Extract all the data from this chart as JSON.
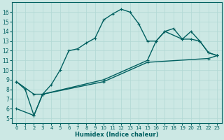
{
  "title": "",
  "xlabel": "Humidex (Indice chaleur)",
  "bg_color": "#cce8e4",
  "line_color": "#006060",
  "grid_color": "#b0d8d4",
  "xlim": [
    -0.5,
    23.5
  ],
  "ylim": [
    4.5,
    17.0
  ],
  "xticks": [
    0,
    1,
    2,
    3,
    4,
    5,
    6,
    7,
    8,
    9,
    10,
    11,
    12,
    13,
    14,
    15,
    16,
    17,
    18,
    19,
    20,
    21,
    22,
    23
  ],
  "yticks": [
    5,
    6,
    7,
    8,
    9,
    10,
    11,
    12,
    13,
    14,
    15,
    16
  ],
  "line1_x": [
    0,
    1,
    2,
    3,
    4,
    5,
    6,
    7,
    8,
    9,
    10,
    11,
    12,
    13,
    14,
    15,
    16,
    17,
    18,
    19,
    20,
    21,
    22,
    23
  ],
  "line1_y": [
    8.8,
    8.0,
    5.3,
    7.5,
    8.5,
    10.0,
    12.0,
    12.2,
    12.8,
    13.3,
    15.2,
    15.8,
    16.3,
    16.0,
    14.8,
    13.0,
    13.0,
    14.0,
    14.3,
    13.2,
    14.0,
    13.0,
    11.8,
    11.5
  ],
  "line2_x": [
    0,
    2,
    3,
    10,
    15,
    16,
    17,
    19,
    20,
    21,
    22,
    23
  ],
  "line2_y": [
    8.8,
    7.5,
    7.5,
    9.0,
    11.0,
    13.0,
    14.0,
    13.2,
    13.2,
    13.0,
    11.8,
    11.5
  ],
  "line3_x": [
    0,
    2,
    3,
    10,
    15,
    22,
    23
  ],
  "line3_y": [
    6.0,
    5.3,
    7.5,
    8.8,
    10.8,
    11.2,
    11.5
  ],
  "marker": "P",
  "markersize": 2.5,
  "linewidth": 1.0
}
